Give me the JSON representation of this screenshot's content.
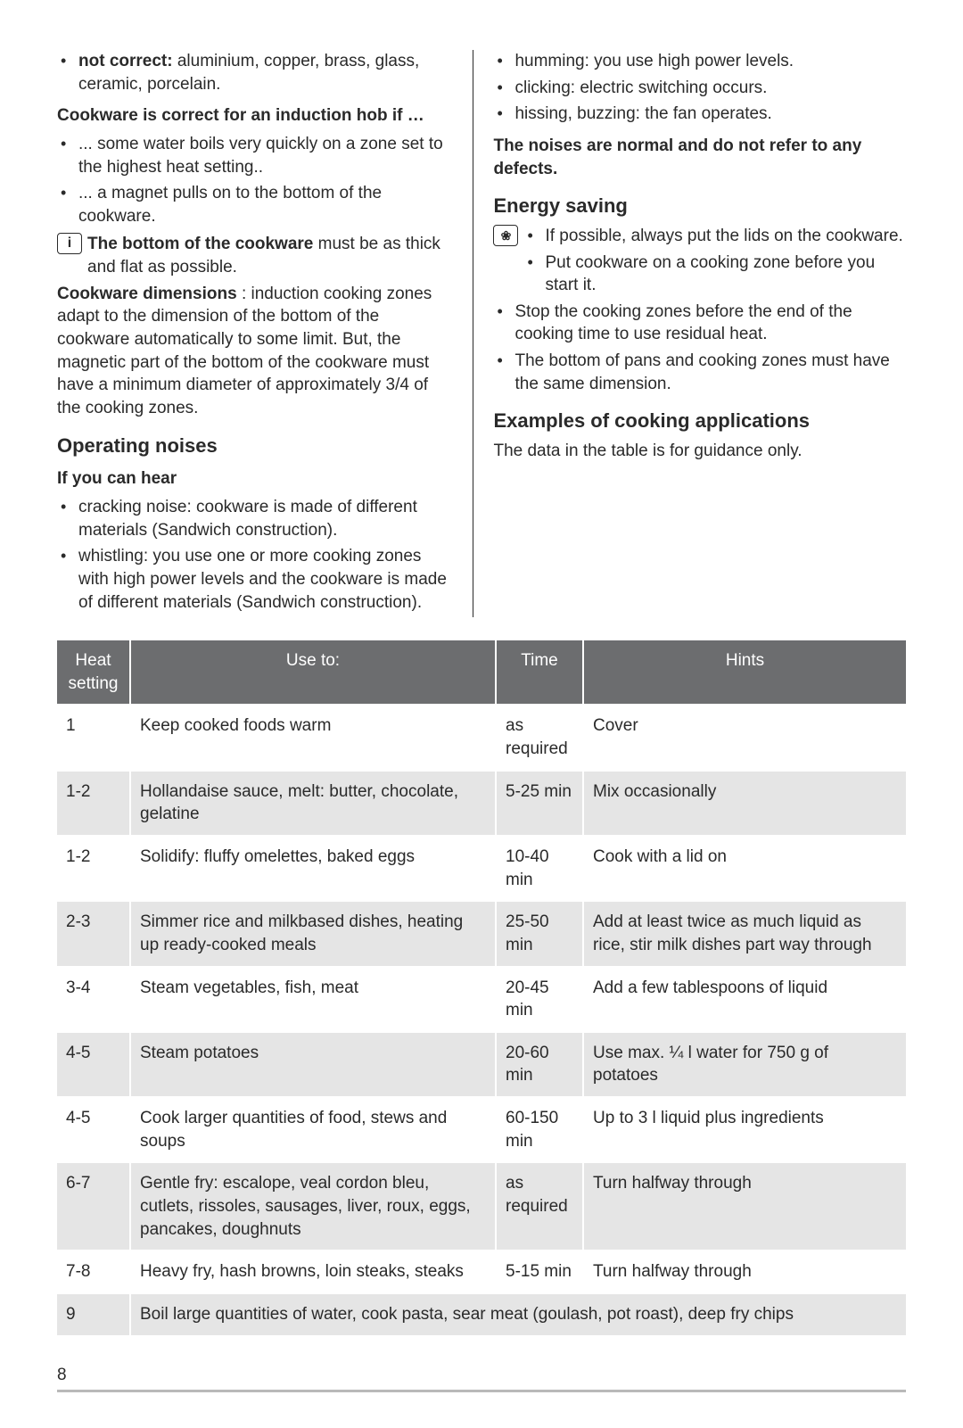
{
  "left": {
    "not_correct_lead": "not correct:",
    "not_correct_rest": " aluminium, copper, brass, glass, ceramic, porcelain.",
    "test_heading": "Cookware is correct for an induction hob if …",
    "tests": [
      "... some water boils very quickly on a zone set to the highest heat setting..",
      "... a magnet pulls on to the bottom of the cookware."
    ],
    "bottom_lead": "The bottom of the cookware",
    "bottom_rest": " must be as thick and flat as possible.",
    "dim_lead": "Cookware dimensions",
    "dim_rest": " : induction cooking zones adapt to the dimension of the bottom of the cookware automatically to some limit. But, the magnetic part of the bottom of the cookware must have a minimum diameter of approximately 3/4 of the cooking zones.",
    "noises_heading": "Operating noises",
    "hear_heading": "If you can hear",
    "noises_left": [
      "cracking noise: cookware is made of different materials (Sandwich construction).",
      "whistling: you use one or more cooking zones with high power levels and the cookware is made of different materials (Sandwich construction)."
    ]
  },
  "right": {
    "noises_right": [
      "humming: you use high power levels.",
      "clicking: electric switching occurs.",
      "hissing, buzzing: the fan operates."
    ],
    "noises_bold": "The noises are normal and do not refer to any defects.",
    "energy_heading": "Energy saving",
    "energy_icon_items": [
      "If possible, always put the lids on the cookware.",
      "Put cookware on a cooking zone before you start it."
    ],
    "energy_rest": [
      "Stop the cooking zones before the end of the cooking time to use residual heat.",
      "The bottom of pans and cooking zones must have the same dimension."
    ],
    "examples_heading": "Examples of cooking applications",
    "examples_note": "The data in the table is for guidance only."
  },
  "table": {
    "headers": {
      "heat": "Heat setting",
      "use": "Use to:",
      "time": "Time",
      "hints": "Hints"
    },
    "rows": [
      {
        "heat": "1",
        "use": "Keep cooked foods warm",
        "time": "as required",
        "hints": "Cover"
      },
      {
        "heat": "1-2",
        "use": "Hollandaise sauce, melt: butter, chocolate, gelatine",
        "time": "5-25 min",
        "hints": "Mix occasionally"
      },
      {
        "heat": "1-2",
        "use": "Solidify: fluffy omelettes, baked eggs",
        "time": "10-40 min",
        "hints": "Cook with a lid on"
      },
      {
        "heat": "2-3",
        "use": "Simmer rice and milkbased dishes, heating up ready-cooked meals",
        "time": "25-50 min",
        "hints": "Add at least twice as much liquid as rice, stir milk dishes part way through"
      },
      {
        "heat": "3-4",
        "use": "Steam vegetables, fish, meat",
        "time": "20-45 min",
        "hints": "Add a few tablespoons of liquid"
      },
      {
        "heat": "4-5",
        "use": "Steam potatoes",
        "time": "20-60 min",
        "hints": "Use max. ¼ l water for 750 g of potatoes"
      },
      {
        "heat": "4-5",
        "use": "Cook larger quantities of food, stews and soups",
        "time": "60-150 min",
        "hints": "Up to 3 l liquid plus ingredients"
      },
      {
        "heat": "6-7",
        "use": "Gentle fry: escalope, veal cordon bleu, cutlets, rissoles, sausages, liver, roux, eggs, pancakes, doughnuts",
        "time": "as required",
        "hints": "Turn halfway through"
      },
      {
        "heat": "7-8",
        "use": "Heavy fry, hash browns, loin steaks, steaks",
        "time": "5-15 min",
        "hints": "Turn halfway through"
      },
      {
        "heat": "9",
        "use": "Boil large quantities of water, cook pasta, sear meat (goulash, pot roast), deep fry chips",
        "time": "",
        "hints": "",
        "span": true
      }
    ]
  },
  "page_num": "8",
  "icons": {
    "info": "i",
    "eco": "❀"
  }
}
